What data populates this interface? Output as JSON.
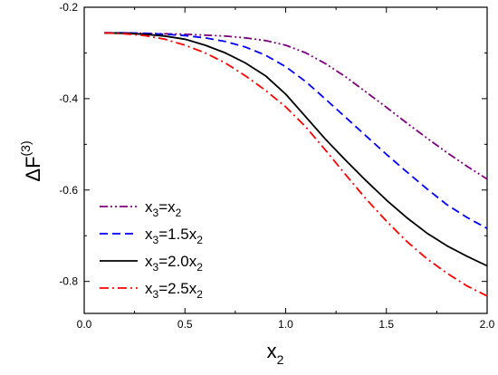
{
  "chart_data": {
    "type": "line",
    "xlabel": {
      "main": "x",
      "sub": "2"
    },
    "ylabel": {
      "main": "ΔF",
      "sup": "(3)"
    },
    "xlim": [
      0.0,
      2.0
    ],
    "ylim": [
      -0.87,
      -0.2
    ],
    "xticks": [
      0.0,
      0.5,
      1.0,
      1.5,
      2.0
    ],
    "xtick_labels": [
      "0.0",
      "0.5",
      "1.0",
      "1.5",
      "2.0"
    ],
    "yticks": [
      -0.8,
      -0.6,
      -0.4,
      -0.2
    ],
    "ytick_labels": [
      "-0.8",
      "-0.6",
      "-0.4",
      "-0.2"
    ],
    "grid": false,
    "legend_position": "bottom-left",
    "series": [
      {
        "legend": {
          "a": "x",
          "a_sub": "3",
          "eq": "=x",
          "b_sub": "2"
        },
        "color": "#800080",
        "dash": "dash-dot-dot",
        "x": [
          0.1,
          0.2,
          0.3,
          0.4,
          0.5,
          0.6,
          0.7,
          0.8,
          0.9,
          1.0,
          1.1,
          1.2,
          1.3,
          1.4,
          1.5,
          1.6,
          1.7,
          1.8,
          1.9,
          2.0
        ],
        "y": [
          -0.256,
          -0.256,
          -0.257,
          -0.258,
          -0.259,
          -0.261,
          -0.263,
          -0.267,
          -0.273,
          -0.283,
          -0.3,
          -0.324,
          -0.353,
          -0.386,
          -0.419,
          -0.453,
          -0.486,
          -0.518,
          -0.548,
          -0.576
        ]
      },
      {
        "legend": {
          "a": "x",
          "a_sub": "3",
          "eq": "=1.5x",
          "b_sub": "2"
        },
        "color": "#0000ff",
        "dash": "dash",
        "x": [
          0.1,
          0.2,
          0.3,
          0.4,
          0.5,
          0.6,
          0.7,
          0.8,
          0.9,
          1.0,
          1.1,
          1.2,
          1.3,
          1.4,
          1.5,
          1.6,
          1.7,
          1.8,
          1.9,
          2.0
        ],
        "y": [
          -0.256,
          -0.256,
          -0.257,
          -0.259,
          -0.262,
          -0.267,
          -0.275,
          -0.287,
          -0.305,
          -0.33,
          -0.363,
          -0.402,
          -0.442,
          -0.482,
          -0.522,
          -0.56,
          -0.597,
          -0.632,
          -0.66,
          -0.684
        ]
      },
      {
        "legend": {
          "a": "x",
          "a_sub": "3",
          "eq": "=2.0x",
          "b_sub": "2"
        },
        "color": "#000000",
        "dash": "solid",
        "x": [
          0.1,
          0.2,
          0.3,
          0.4,
          0.5,
          0.6,
          0.7,
          0.8,
          0.9,
          1.0,
          1.1,
          1.2,
          1.3,
          1.4,
          1.5,
          1.6,
          1.7,
          1.8,
          1.9,
          2.0
        ],
        "y": [
          -0.256,
          -0.257,
          -0.259,
          -0.263,
          -0.27,
          -0.283,
          -0.3,
          -0.322,
          -0.35,
          -0.39,
          -0.44,
          -0.49,
          -0.536,
          -0.58,
          -0.622,
          -0.66,
          -0.694,
          -0.722,
          -0.745,
          -0.766
        ]
      },
      {
        "legend": {
          "a": "x",
          "a_sub": "3",
          "eq": "=2.5x",
          "b_sub": "2"
        },
        "color": "#ff0000",
        "dash": "dash-dot",
        "x": [
          0.1,
          0.2,
          0.3,
          0.4,
          0.5,
          0.6,
          0.7,
          0.8,
          0.9,
          1.0,
          1.1,
          1.2,
          1.3,
          1.4,
          1.5,
          1.6,
          1.7,
          1.8,
          1.9,
          2.0
        ],
        "y": [
          -0.256,
          -0.258,
          -0.262,
          -0.27,
          -0.283,
          -0.3,
          -0.322,
          -0.35,
          -0.382,
          -0.418,
          -0.462,
          -0.514,
          -0.568,
          -0.62,
          -0.668,
          -0.712,
          -0.75,
          -0.782,
          -0.81,
          -0.832
        ]
      }
    ]
  }
}
